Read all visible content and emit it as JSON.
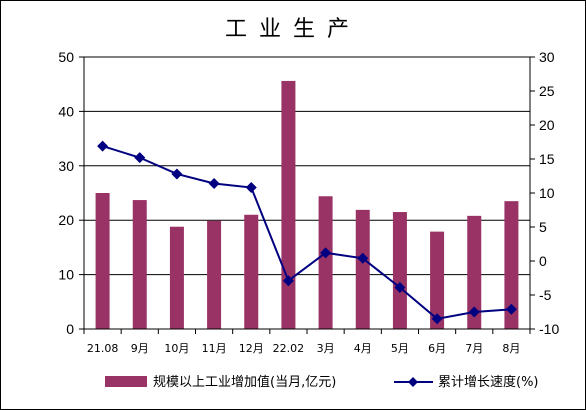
{
  "chart_data": {
    "type": "bar",
    "title": "工业生产",
    "categories": [
      "21.08",
      "9月",
      "10月",
      "11月",
      "12月",
      "22.02",
      "3月",
      "4月",
      "5月",
      "6月",
      "7月",
      "8月"
    ],
    "series": [
      {
        "name": "规模以上工业增加值(当月,亿元)",
        "type": "bar",
        "axis": "left",
        "color": "#993366",
        "values": [
          25.0,
          23.7,
          18.8,
          19.9,
          21.0,
          45.6,
          24.4,
          21.9,
          21.5,
          17.9,
          20.8,
          23.5
        ]
      },
      {
        "name": "累计增长速度(%)",
        "type": "line",
        "axis": "right",
        "color": "#000080",
        "values": [
          16.9,
          15.2,
          12.8,
          11.4,
          10.8,
          -2.9,
          1.2,
          0.4,
          -3.9,
          -8.5,
          -7.5,
          -7.1
        ]
      }
    ],
    "y_left": {
      "lim": [
        0,
        50
      ],
      "ticks": [
        0,
        10,
        20,
        30,
        40,
        50
      ]
    },
    "y_right": {
      "lim": [
        -10,
        30
      ],
      "ticks": [
        -10,
        -5,
        0,
        5,
        10,
        15,
        20,
        25,
        30
      ]
    },
    "grid": true,
    "legend": "bottom"
  }
}
